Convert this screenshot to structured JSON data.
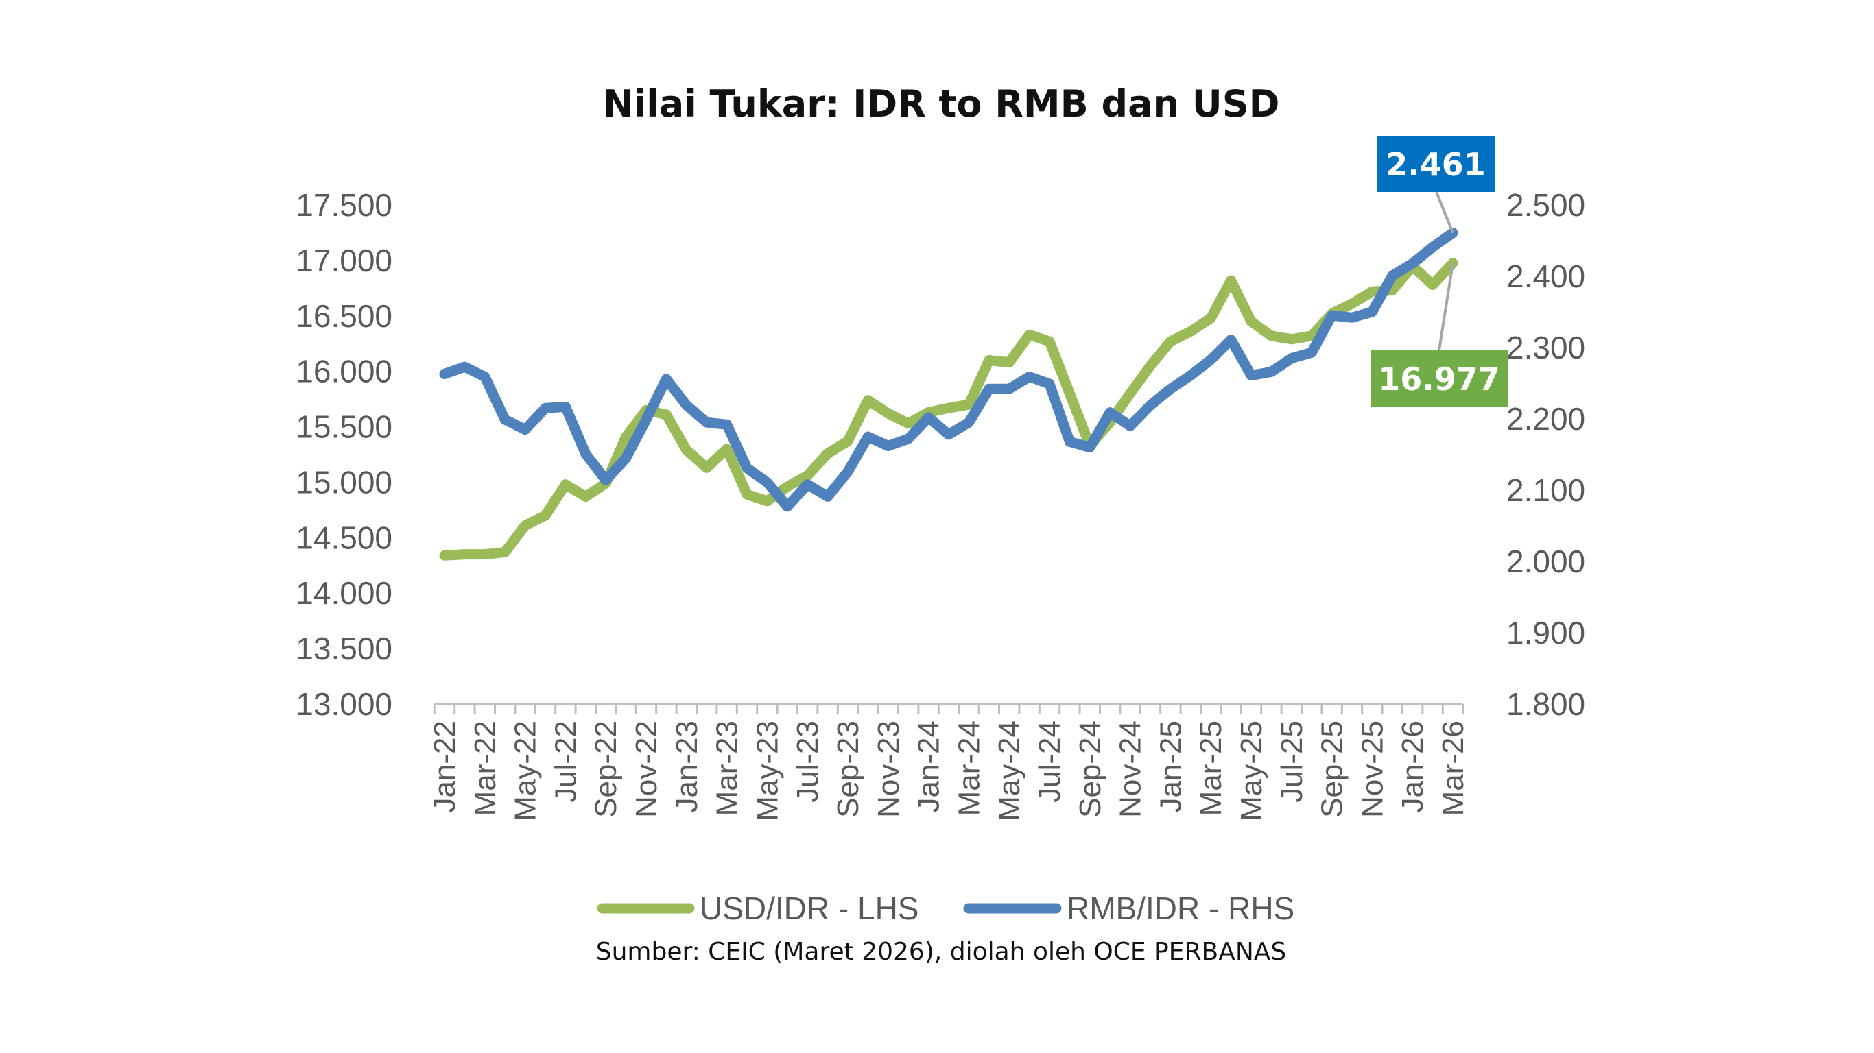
{
  "chart_data": {
    "type": "line",
    "title": "Nilai Tukar: IDR to RMB dan USD",
    "source": "Sumber: CEIC (Maret 2026), diolah oleh OCE PERBANAS",
    "x": [
      "Jan-22",
      "Feb-22",
      "Mar-22",
      "Apr-22",
      "May-22",
      "Jun-22",
      "Jul-22",
      "Aug-22",
      "Sep-22",
      "Oct-22",
      "Nov-22",
      "Dec-22",
      "Jan-23",
      "Feb-23",
      "Mar-23",
      "Apr-23",
      "May-23",
      "Jun-23",
      "Jul-23",
      "Aug-23",
      "Sep-23",
      "Oct-23",
      "Nov-23",
      "Dec-23",
      "Jan-24",
      "Feb-24",
      "Mar-24",
      "Apr-24",
      "May-24",
      "Jun-24",
      "Jul-24",
      "Aug-24",
      "Sep-24",
      "Oct-24",
      "Nov-24",
      "Dec-24",
      "Jan-25",
      "Feb-25",
      "Mar-25",
      "Apr-25",
      "May-25",
      "Jun-25",
      "Jul-25",
      "Aug-25",
      "Sep-25",
      "Oct-25",
      "Nov-25",
      "Dec-25",
      "Jan-26",
      "Feb-26",
      "Mar-26"
    ],
    "x_tick_labels": [
      "Jan-22",
      "Mar-22",
      "May-22",
      "Jul-22",
      "Sep-22",
      "Nov-22",
      "Jan-23",
      "Mar-23",
      "May-23",
      "Jul-23",
      "Sep-23",
      "Nov-23",
      "Jan-24",
      "Mar-24",
      "May-24",
      "Jul-24",
      "Sep-24",
      "Nov-24",
      "Jan-25",
      "Mar-25",
      "May-25",
      "Jul-25",
      "Sep-25",
      "Nov-25",
      "Jan-26",
      "Mar-26"
    ],
    "left_axis": {
      "ylim": [
        13000,
        17500
      ],
      "ticks": [
        "17.500",
        "17.000",
        "16.500",
        "16.000",
        "15.500",
        "15.000",
        "14.500",
        "14.000",
        "13.500",
        "13.000"
      ],
      "tick_values": [
        17500,
        17000,
        16500,
        16000,
        15500,
        15000,
        14500,
        14000,
        13500,
        13000
      ]
    },
    "right_axis": {
      "ylim": [
        1.8,
        2.5
      ],
      "ticks": [
        "2.500",
        "2.400",
        "2.300",
        "2.200",
        "2.100",
        "2.000",
        "1.900",
        "1.800"
      ],
      "tick_values": [
        2.5,
        2.4,
        2.3,
        2.2,
        2.1,
        2.0,
        1.9,
        1.8
      ]
    },
    "grid": false,
    "legend_position": "bottom",
    "series": [
      {
        "name": "USD/IDR - LHS",
        "axis": "left",
        "color": "#9BBB59",
        "values": [
          14340,
          14350,
          14350,
          14370,
          14610,
          14700,
          14980,
          14870,
          14990,
          15410,
          15650,
          15610,
          15290,
          15130,
          15300,
          14890,
          14830,
          14960,
          15060,
          15260,
          15370,
          15740,
          15620,
          15530,
          15630,
          15670,
          15700,
          16100,
          16080,
          16330,
          16270,
          15800,
          15330,
          15540,
          15800,
          16050,
          16270,
          16360,
          16480,
          16820,
          16450,
          16320,
          16290,
          16320,
          16520,
          16610,
          16720,
          16730,
          16950,
          16780,
          16977
        ],
        "last_label": "16.977",
        "label_color": "#70AD47"
      },
      {
        "name": "RMB/IDR - RHS",
        "axis": "right",
        "color": "#4F81BD",
        "values": [
          2.263,
          2.273,
          2.259,
          2.199,
          2.185,
          2.215,
          2.217,
          2.151,
          2.114,
          2.145,
          2.199,
          2.256,
          2.219,
          2.195,
          2.192,
          2.131,
          2.111,
          2.077,
          2.108,
          2.091,
          2.126,
          2.175,
          2.162,
          2.172,
          2.202,
          2.178,
          2.195,
          2.242,
          2.242,
          2.259,
          2.249,
          2.168,
          2.16,
          2.209,
          2.19,
          2.219,
          2.242,
          2.261,
          2.283,
          2.311,
          2.261,
          2.266,
          2.285,
          2.293,
          2.345,
          2.342,
          2.35,
          2.401,
          2.418,
          2.441,
          2.461
        ],
        "last_label": "2.461",
        "label_color": "#0070C0"
      }
    ]
  }
}
